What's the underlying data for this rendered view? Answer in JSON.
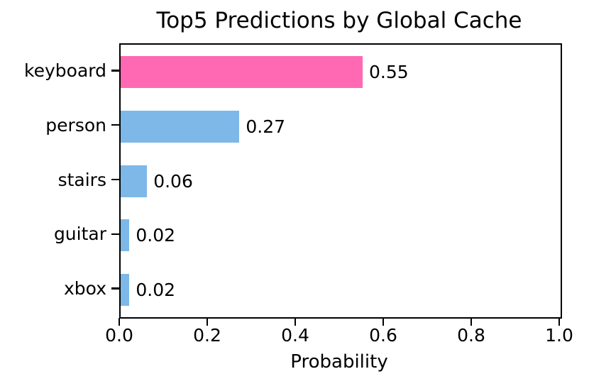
{
  "chart_data": {
    "type": "bar",
    "orientation": "horizontal",
    "title": "Top5 Predictions by Global Cache",
    "xlabel": "Probability",
    "ylabel": "",
    "categories": [
      "keyboard",
      "person",
      "stairs",
      "guitar",
      "xbox"
    ],
    "values": [
      0.55,
      0.27,
      0.06,
      0.02,
      0.02
    ],
    "value_labels": [
      "0.55",
      "0.27",
      "0.06",
      "0.02",
      "0.02"
    ],
    "bar_colors": [
      "#FF69B4",
      "#7DB8E8",
      "#7DB8E8",
      "#7DB8E8",
      "#7DB8E8"
    ],
    "xlim": [
      0.0,
      1.0
    ],
    "x_tick_labels": [
      "0.0",
      "0.2",
      "0.4",
      "0.6",
      "0.8",
      "1.0"
    ],
    "x_tick_values": [
      0.0,
      0.2,
      0.4,
      0.6,
      0.8,
      1.0
    ],
    "grid": false,
    "legend": null,
    "background_color": "#ffffff",
    "spine_color": "#000000",
    "text_color": "#000000"
  }
}
